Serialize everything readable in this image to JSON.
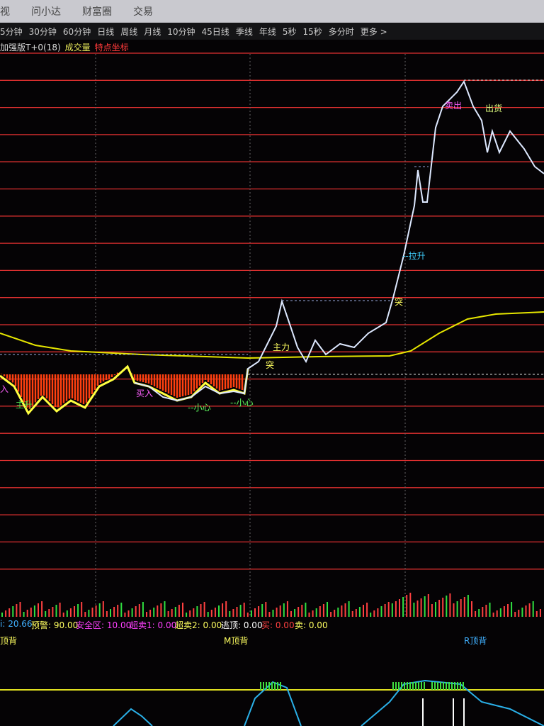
{
  "menu": [
    "视",
    "问小达",
    "财富圈",
    "交易"
  ],
  "tabs": [
    "5分钟",
    "30分钟",
    "60分钟",
    "日线",
    "周线",
    "月线",
    "10分钟",
    "45日线",
    "季线",
    "年线",
    "5秒",
    "15秒",
    "多分时",
    "更多 >"
  ],
  "indicator_bar": [
    "加强版T+0(18)",
    "成交量",
    "特点坐标"
  ],
  "annotations": [
    "入",
    "主升",
    "买入",
    "--小心",
    "--小心",
    "主力",
    "突",
    "--拉升",
    "突",
    "出货",
    "卖出"
  ],
  "readouts": [
    "i: 20.66",
    "预警: 90.00",
    "安全区: 10.00",
    "超卖1: 0.00",
    "超卖2: 0.00",
    "逃顶: 0.00",
    "买: 0.00",
    "卖: 0.00"
  ],
  "bottom_labels": [
    "顶背",
    "M顶背",
    "R顶背"
  ]
}
